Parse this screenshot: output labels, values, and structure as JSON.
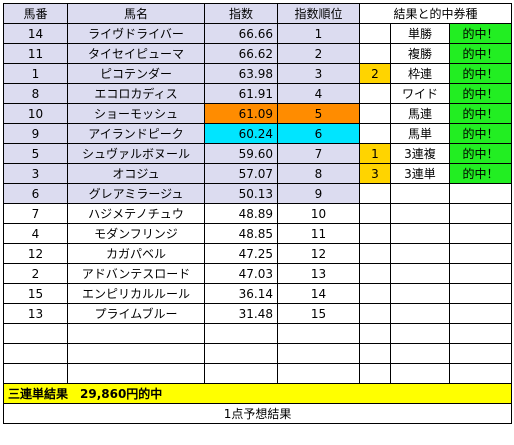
{
  "headers": {
    "num": "馬番",
    "name": "馬名",
    "index": "指数",
    "rank": "指数順位",
    "result": "結果と的中券種"
  },
  "rows": [
    {
      "num": "14",
      "name": "ライヴドライバー",
      "index": "66.66",
      "rank": "1",
      "mark": "",
      "ticket": "単勝",
      "hit": "的中！"
    },
    {
      "num": "11",
      "name": "タイセイピューマ",
      "index": "66.62",
      "rank": "2",
      "mark": "",
      "ticket": "複勝",
      "hit": "的中！"
    },
    {
      "num": "1",
      "name": "ピコテンダー",
      "index": "63.98",
      "rank": "3",
      "mark": "2",
      "ticket": "枠連",
      "hit": "的中！"
    },
    {
      "num": "8",
      "name": "エコロカディス",
      "index": "61.91",
      "rank": "4",
      "mark": "",
      "ticket": "ワイド",
      "hit": "的中！"
    },
    {
      "num": "10",
      "name": "ショーモッシュ",
      "index": "61.09",
      "rank": "5",
      "mark": "",
      "ticket": "馬連",
      "hit": "的中！"
    },
    {
      "num": "9",
      "name": "アイランドピーク",
      "index": "60.24",
      "rank": "6",
      "mark": "",
      "ticket": "馬単",
      "hit": "的中！"
    },
    {
      "num": "5",
      "name": "シュヴァルボヌール",
      "index": "59.60",
      "rank": "7",
      "mark": "1",
      "ticket": "3連複",
      "hit": "的中！"
    },
    {
      "num": "3",
      "name": "オコジュ",
      "index": "57.07",
      "rank": "8",
      "mark": "3",
      "ticket": "3連単",
      "hit": "的中！"
    },
    {
      "num": "6",
      "name": "グレアミラージュ",
      "index": "50.13",
      "rank": "9",
      "mark": "",
      "ticket": "",
      "hit": ""
    },
    {
      "num": "7",
      "name": "ハジメテノチュウ",
      "index": "48.89",
      "rank": "10",
      "mark": "",
      "ticket": "",
      "hit": ""
    },
    {
      "num": "4",
      "name": "モダンフリンジ",
      "index": "48.85",
      "rank": "11",
      "mark": "",
      "ticket": "",
      "hit": ""
    },
    {
      "num": "12",
      "name": "カガパベル",
      "index": "47.25",
      "rank": "12",
      "mark": "",
      "ticket": "",
      "hit": ""
    },
    {
      "num": "2",
      "name": "アドバンテスロード",
      "index": "47.03",
      "rank": "13",
      "mark": "",
      "ticket": "",
      "hit": ""
    },
    {
      "num": "15",
      "name": "エンピリカルルール",
      "index": "36.14",
      "rank": "14",
      "mark": "",
      "ticket": "",
      "hit": ""
    },
    {
      "num": "13",
      "name": "プライムブルー",
      "index": "31.48",
      "rank": "15",
      "mark": "",
      "ticket": "",
      "hit": ""
    }
  ],
  "result_line": "三連単結果　29,860円的中",
  "footer": "1点予想結果",
  "colors": {
    "lavender": "#dcdcf0",
    "gold": "#ffd400",
    "green": "#22ee22",
    "orange": "#ff8c00",
    "cyan": "#00e5ff",
    "yellow": "#ffff00"
  }
}
